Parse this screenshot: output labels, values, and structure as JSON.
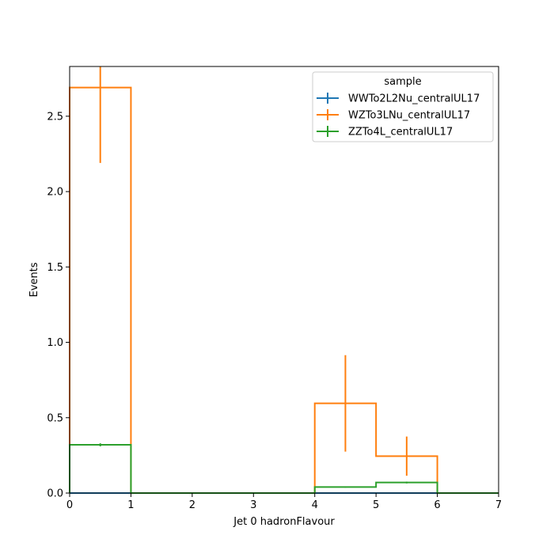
{
  "chart_data": {
    "type": "histogram-step",
    "xlabel": "Jet 0 hadronFlavour",
    "ylabel": "Events",
    "xlim": [
      0,
      7
    ],
    "ylim": [
      0,
      2.83
    ],
    "x_ticks": [
      0,
      1,
      2,
      3,
      4,
      5,
      6,
      7
    ],
    "y_ticks": [
      0.0,
      0.5,
      1.0,
      1.5,
      2.0,
      2.5
    ],
    "x_tick_labels": [
      "0",
      "1",
      "2",
      "3",
      "4",
      "5",
      "6",
      "7"
    ],
    "y_tick_labels": [
      "0.0",
      "0.5",
      "1.0",
      "1.5",
      "2.0",
      "2.5"
    ],
    "bin_edges": [
      0,
      1,
      2,
      3,
      4,
      5,
      6,
      7
    ],
    "legend": {
      "title": "sample",
      "placement": "top-right"
    },
    "series": [
      {
        "name": "WWTo2L2Nu_centralUL17",
        "color": "#1f77b4",
        "values": [
          0,
          0,
          0,
          0,
          0,
          0,
          0
        ],
        "errors": [
          0,
          0,
          0,
          0,
          0,
          0,
          0
        ]
      },
      {
        "name": "WZTo3LNu_centralUL17",
        "color": "#ff7f0e",
        "values": [
          2.69,
          0,
          0,
          0,
          0.595,
          0.245,
          0
        ],
        "errors": [
          0.5,
          0,
          0,
          0,
          0.32,
          0.13,
          0
        ]
      },
      {
        "name": "ZZTo4L_centralUL17",
        "color": "#2ca02c",
        "values": [
          0.32,
          0,
          0,
          0,
          0.04,
          0.07,
          0
        ],
        "errors": [
          0.01,
          0,
          0,
          0,
          0.004,
          0.006,
          0
        ]
      }
    ]
  }
}
